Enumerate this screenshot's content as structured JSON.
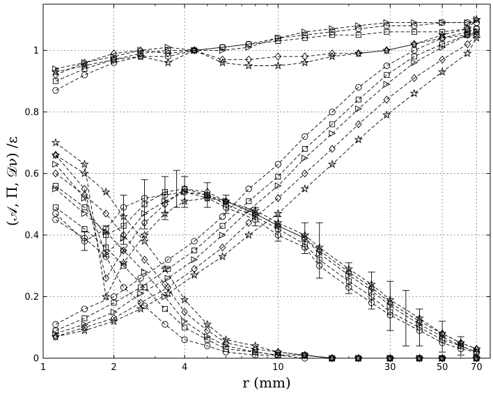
{
  "chart_data": {
    "type": "line",
    "xscale": "log",
    "xlim": [
      1,
      80
    ],
    "ylim": [
      0,
      1.15
    ],
    "xlabel": "r (mm)",
    "ylabel": "(𝒜, Π, 𝒟ν) /ε",
    "grid": true,
    "xticks": [
      {
        "v": 1,
        "label": "1"
      },
      {
        "v": 2,
        "label": "2"
      },
      {
        "v": 4,
        "label": "4"
      },
      {
        "v": 10,
        "label": "10"
      },
      {
        "v": 30,
        "label": "30"
      },
      {
        "v": 50,
        "label": "50"
      },
      {
        "v": 70,
        "label": "70"
      }
    ],
    "yticks": [
      {
        "v": 0,
        "label": "0"
      },
      {
        "v": 0.2,
        "label": "0.2"
      },
      {
        "v": 0.4,
        "label": "0.4"
      },
      {
        "v": 0.6,
        "label": "0.6"
      },
      {
        "v": 0.8,
        "label": "0.8"
      },
      {
        "v": 1,
        "label": "1"
      }
    ],
    "series": [
      {
        "group": "sum",
        "marker": "circle",
        "x": [
          1.13,
          1.5,
          2.0,
          2.6,
          3.4,
          4.4,
          5.8,
          7.5,
          10,
          13,
          17,
          22,
          29,
          38,
          50,
          64,
          70
        ],
        "y": [
          0.87,
          0.92,
          0.96,
          0.98,
          0.98,
          1.0,
          1.01,
          1.02,
          1.04,
          1.05,
          1.06,
          1.07,
          1.08,
          1.08,
          1.09,
          1.09,
          1.09
        ]
      },
      {
        "group": "sum",
        "marker": "square",
        "x": [
          1.13,
          1.5,
          2.0,
          2.6,
          3.4,
          4.4,
          5.8,
          7.5,
          10,
          13,
          17,
          22,
          29,
          38,
          50,
          64,
          70
        ],
        "y": [
          0.9,
          0.94,
          0.97,
          0.99,
          1.0,
          1.0,
          1.01,
          1.02,
          1.03,
          1.04,
          1.05,
          1.05,
          1.06,
          1.06,
          1.06,
          1.07,
          1.07
        ]
      },
      {
        "group": "sum",
        "marker": "triangle-right",
        "x": [
          1.13,
          1.5,
          2.0,
          2.6,
          3.4,
          4.4,
          5.8,
          7.5,
          10,
          13,
          17,
          22,
          29,
          38,
          50,
          64,
          70
        ],
        "y": [
          0.94,
          0.96,
          0.98,
          1.0,
          1.01,
          1.0,
          1.0,
          1.01,
          1.04,
          1.06,
          1.07,
          1.08,
          1.09,
          1.09,
          1.09,
          1.09,
          1.1
        ]
      },
      {
        "group": "sum",
        "marker": "diamond",
        "x": [
          1.13,
          1.5,
          2.0,
          2.6,
          3.4,
          4.4,
          5.8,
          7.5,
          10,
          13,
          17,
          22,
          29,
          38,
          50,
          64,
          70
        ],
        "y": [
          0.92,
          0.96,
          0.99,
          1.0,
          0.99,
          1.0,
          0.97,
          0.97,
          0.98,
          0.98,
          0.99,
          0.99,
          1.0,
          1.02,
          1.04,
          1.05,
          1.05
        ]
      },
      {
        "group": "sum",
        "marker": "star",
        "x": [
          1.13,
          1.5,
          2.0,
          2.6,
          3.4,
          4.4,
          5.8,
          7.5,
          10,
          13,
          17,
          22,
          29,
          38,
          50,
          64,
          70
        ],
        "y": [
          0.93,
          0.95,
          0.97,
          0.98,
          0.96,
          1.0,
          0.96,
          0.95,
          0.95,
          0.96,
          0.98,
          0.99,
          1.0,
          1.02,
          1.05,
          1.07,
          1.1
        ]
      },
      {
        "group": "advection",
        "marker": "circle",
        "x": [
          1.13,
          1.5,
          2.0,
          2.6,
          3.4,
          4.4,
          5.8,
          7.5,
          10,
          13,
          17,
          22,
          29,
          38,
          50,
          64,
          70
        ],
        "y": [
          0.11,
          0.16,
          0.2,
          0.26,
          0.32,
          0.38,
          0.46,
          0.55,
          0.63,
          0.72,
          0.8,
          0.88,
          0.95,
          1.0,
          1.04,
          1.06,
          1.07
        ]
      },
      {
        "group": "advection",
        "marker": "square",
        "x": [
          1.13,
          1.5,
          2.0,
          2.6,
          3.4,
          4.4,
          5.8,
          7.5,
          10,
          13,
          17,
          22,
          29,
          38,
          50,
          64,
          70
        ],
        "y": [
          0.09,
          0.13,
          0.18,
          0.23,
          0.29,
          0.35,
          0.43,
          0.51,
          0.59,
          0.68,
          0.76,
          0.84,
          0.92,
          0.98,
          1.02,
          1.05,
          1.06
        ]
      },
      {
        "group": "advection",
        "marker": "triangle-right",
        "x": [
          1.13,
          1.5,
          2.0,
          2.6,
          3.4,
          4.4,
          5.8,
          7.5,
          10,
          13,
          17,
          22,
          29,
          38,
          50,
          64,
          70
        ],
        "y": [
          0.08,
          0.11,
          0.15,
          0.21,
          0.26,
          0.32,
          0.4,
          0.48,
          0.56,
          0.65,
          0.73,
          0.81,
          0.89,
          0.96,
          1.01,
          1.05,
          1.06
        ]
      },
      {
        "group": "advection",
        "marker": "diamond",
        "x": [
          1.13,
          1.5,
          2.0,
          2.6,
          3.4,
          4.4,
          5.8,
          7.5,
          10,
          13,
          17,
          22,
          29,
          38,
          50,
          64,
          70
        ],
        "y": [
          0.07,
          0.1,
          0.13,
          0.18,
          0.23,
          0.29,
          0.36,
          0.44,
          0.52,
          0.6,
          0.68,
          0.76,
          0.84,
          0.91,
          0.97,
          1.02,
          1.05
        ]
      },
      {
        "group": "advection",
        "marker": "star",
        "x": [
          1.13,
          1.5,
          2.0,
          2.6,
          3.4,
          4.4,
          5.8,
          7.5,
          10,
          13,
          17,
          22,
          29,
          38,
          50,
          64,
          70
        ],
        "y": [
          0.07,
          0.09,
          0.12,
          0.16,
          0.21,
          0.27,
          0.33,
          0.4,
          0.47,
          0.55,
          0.63,
          0.71,
          0.79,
          0.86,
          0.93,
          0.99,
          1.04
        ]
      },
      {
        "group": "transfer",
        "marker": "circle",
        "x": [
          1.13,
          1.5,
          1.85,
          2.2,
          2.7,
          3.3,
          4.0,
          5.0,
          6.0,
          8.0,
          10,
          13,
          15,
          20,
          25,
          30,
          40,
          50,
          60,
          70
        ],
        "y": [
          0.47,
          0.38,
          0.42,
          0.49,
          0.52,
          0.53,
          0.54,
          0.52,
          0.49,
          0.45,
          0.4,
          0.36,
          0.3,
          0.23,
          0.18,
          0.14,
          0.09,
          0.05,
          0.03,
          0.02
        ]
      },
      {
        "group": "transfer",
        "marker": "square",
        "x": [
          1.13,
          1.5,
          1.85,
          2.2,
          2.7,
          3.3,
          4.0,
          5.0,
          6.0,
          8.0,
          10,
          13,
          15,
          20,
          25,
          30,
          40,
          50,
          60,
          70
        ],
        "y": [
          0.56,
          0.49,
          0.4,
          0.43,
          0.5,
          0.54,
          0.55,
          0.53,
          0.5,
          0.46,
          0.42,
          0.37,
          0.32,
          0.25,
          0.2,
          0.15,
          0.1,
          0.06,
          0.04,
          0.02
        ]
      },
      {
        "group": "transfer",
        "marker": "triangle-right",
        "x": [
          1.13,
          1.5,
          1.85,
          2.2,
          2.7,
          3.3,
          4.0,
          5.0,
          6.0,
          8.0,
          10,
          13,
          15,
          20,
          25,
          30,
          40,
          50,
          60,
          70
        ],
        "y": [
          0.63,
          0.52,
          0.34,
          0.39,
          0.47,
          0.51,
          0.54,
          0.53,
          0.51,
          0.47,
          0.43,
          0.39,
          0.34,
          0.27,
          0.22,
          0.17,
          0.11,
          0.07,
          0.04,
          0.02
        ]
      },
      {
        "group": "transfer",
        "marker": "diamond",
        "x": [
          1.13,
          1.5,
          1.85,
          2.2,
          2.7,
          3.3,
          4.0,
          5.0,
          6.0,
          8.0,
          10,
          13,
          15,
          20,
          25,
          30,
          40,
          50,
          60,
          70
        ],
        "y": [
          0.66,
          0.55,
          0.26,
          0.35,
          0.44,
          0.5,
          0.55,
          0.54,
          0.51,
          0.47,
          0.43,
          0.39,
          0.35,
          0.28,
          0.23,
          0.18,
          0.12,
          0.08,
          0.05,
          0.03
        ]
      },
      {
        "group": "transfer",
        "marker": "star",
        "x": [
          1.13,
          1.5,
          1.85,
          2.2,
          2.7,
          3.3,
          4.0,
          5.0,
          6.0,
          8.0,
          10,
          13,
          15,
          20,
          25,
          30,
          40,
          50,
          60,
          70
        ],
        "y": [
          0.7,
          0.63,
          0.2,
          0.31,
          0.4,
          0.47,
          0.51,
          0.52,
          0.51,
          0.48,
          0.44,
          0.4,
          0.36,
          0.29,
          0.24,
          0.19,
          0.13,
          0.08,
          0.05,
          0.03
        ]
      },
      {
        "group": "dissipation",
        "marker": "circle",
        "x": [
          1.13,
          1.5,
          1.85,
          2.2,
          2.7,
          3.3,
          4.0,
          5.0,
          6.0,
          8.0,
          10,
          13,
          17,
          22,
          30,
          40,
          50,
          70
        ],
        "y": [
          0.45,
          0.39,
          0.33,
          0.23,
          0.17,
          0.11,
          0.06,
          0.04,
          0.02,
          0.01,
          0.01,
          0.0,
          0.0,
          0.0,
          0.0,
          0.0,
          0.0,
          0.0
        ]
      },
      {
        "group": "dissipation",
        "marker": "square",
        "x": [
          1.13,
          1.5,
          1.85,
          2.2,
          2.7,
          3.3,
          4.0,
          5.0,
          6.0,
          8.0,
          10,
          13,
          17,
          22,
          30,
          40,
          50,
          70
        ],
        "y": [
          0.49,
          0.42,
          0.36,
          0.3,
          0.23,
          0.16,
          0.1,
          0.06,
          0.03,
          0.02,
          0.01,
          0.01,
          0.0,
          0.0,
          0.0,
          0.0,
          0.0,
          0.0
        ]
      },
      {
        "group": "dissipation",
        "marker": "triangle-right",
        "x": [
          1.13,
          1.5,
          1.85,
          2.2,
          2.7,
          3.3,
          4.0,
          5.0,
          6.0,
          8.0,
          10,
          13,
          17,
          22,
          30,
          40,
          50,
          70
        ],
        "y": [
          0.55,
          0.47,
          0.41,
          0.35,
          0.28,
          0.2,
          0.12,
          0.07,
          0.04,
          0.02,
          0.01,
          0.01,
          0.0,
          0.0,
          0.0,
          0.0,
          0.0,
          0.0
        ]
      },
      {
        "group": "dissipation",
        "marker": "diamond",
        "x": [
          1.13,
          1.5,
          1.85,
          2.2,
          2.7,
          3.3,
          4.0,
          5.0,
          6.0,
          8.0,
          10,
          13,
          17,
          22,
          30,
          40,
          50,
          70
        ],
        "y": [
          0.6,
          0.53,
          0.47,
          0.4,
          0.32,
          0.24,
          0.15,
          0.09,
          0.05,
          0.03,
          0.02,
          0.01,
          0.0,
          0.0,
          0.0,
          0.0,
          0.0,
          0.0
        ]
      },
      {
        "group": "dissipation",
        "marker": "star",
        "x": [
          1.13,
          1.5,
          1.85,
          2.2,
          2.7,
          3.3,
          4.0,
          5.0,
          6.0,
          8.0,
          10,
          13,
          17,
          22,
          30,
          40,
          50,
          70
        ],
        "y": [
          0.66,
          0.6,
          0.54,
          0.46,
          0.38,
          0.29,
          0.19,
          0.11,
          0.06,
          0.04,
          0.02,
          0.01,
          0.0,
          0.0,
          0.0,
          0.0,
          0.0,
          0.0
        ]
      }
    ],
    "errorbars": [
      {
        "x": 1.5,
        "y": 0.38,
        "err": 0.03
      },
      {
        "x": 1.85,
        "y": 0.38,
        "err": 0.05
      },
      {
        "x": 2.2,
        "y": 0.45,
        "err": 0.08
      },
      {
        "x": 2.7,
        "y": 0.5,
        "err": 0.08
      },
      {
        "x": 3.3,
        "y": 0.52,
        "err": 0.07
      },
      {
        "x": 3.7,
        "y": 0.55,
        "err": 0.06
      },
      {
        "x": 4.0,
        "y": 0.54,
        "err": 0.05
      },
      {
        "x": 5.0,
        "y": 0.53,
        "err": 0.04
      },
      {
        "x": 6.0,
        "y": 0.5,
        "err": 0.03
      },
      {
        "x": 8.0,
        "y": 0.46,
        "err": 0.03
      },
      {
        "x": 10,
        "y": 0.42,
        "err": 0.04
      },
      {
        "x": 13,
        "y": 0.39,
        "err": 0.05
      },
      {
        "x": 15,
        "y": 0.35,
        "err": 0.09
      },
      {
        "x": 20,
        "y": 0.26,
        "err": 0.05
      },
      {
        "x": 25,
        "y": 0.22,
        "err": 0.06
      },
      {
        "x": 30,
        "y": 0.17,
        "err": 0.08
      },
      {
        "x": 35,
        "y": 0.13,
        "err": 0.09
      },
      {
        "x": 40,
        "y": 0.1,
        "err": 0.06
      },
      {
        "x": 50,
        "y": 0.07,
        "err": 0.05
      },
      {
        "x": 60,
        "y": 0.04,
        "err": 0.03
      }
    ]
  }
}
